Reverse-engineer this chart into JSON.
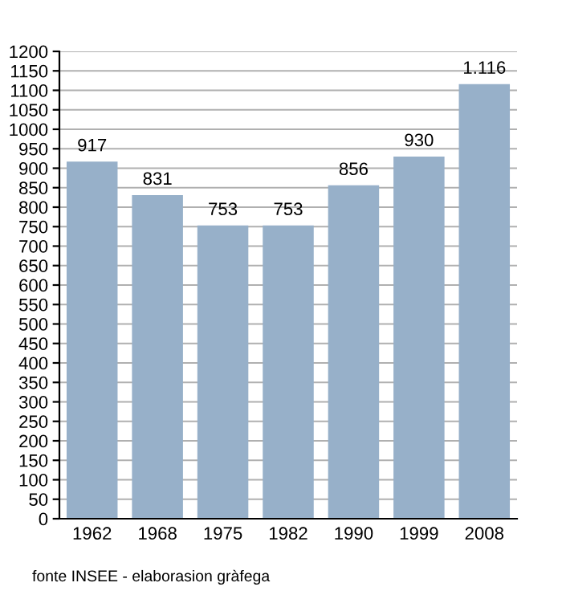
{
  "chart_data": {
    "type": "bar",
    "categories": [
      "1962",
      "1968",
      "1975",
      "1982",
      "1990",
      "1999",
      "2008"
    ],
    "values": [
      917,
      831,
      753,
      753,
      856,
      930,
      1116
    ],
    "value_labels": [
      "917",
      "831",
      "753",
      "753",
      "856",
      "930",
      "1.116"
    ],
    "color": "#97b0c9",
    "ylim": [
      0,
      1200
    ],
    "yticks": [
      0,
      50,
      100,
      150,
      200,
      250,
      300,
      350,
      400,
      450,
      500,
      550,
      600,
      650,
      700,
      750,
      800,
      850,
      900,
      950,
      1000,
      1050,
      1100,
      1150,
      1200
    ],
    "grid": "y",
    "annotations": [
      "fonte INSEE - elaborasion gràfega"
    ]
  }
}
